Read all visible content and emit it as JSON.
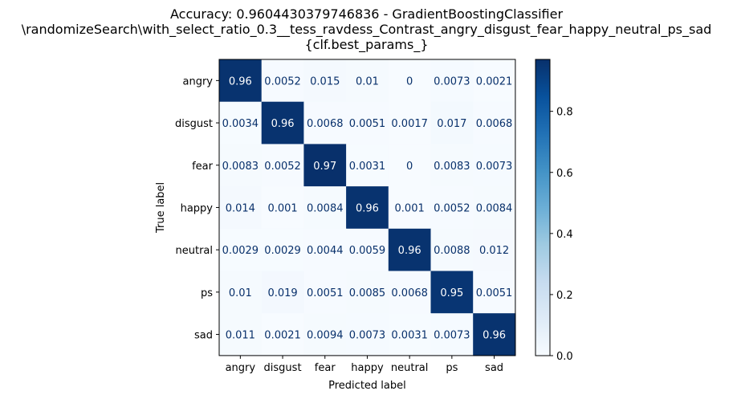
{
  "chart_data": {
    "type": "heatmap",
    "title_lines": [
      "Accuracy: 0.9604430379746836 - GradientBoostingClassifier",
      "\\randomizeSearch\\with_select_ratio_0.3__tess_ravdess_Contrast_angry_disgust_fear_happy_neutral_ps_sad",
      "{clf.best_params_}"
    ],
    "xlabel": "Predicted label",
    "ylabel": "True label",
    "x_categories": [
      "angry",
      "disgust",
      "fear",
      "happy",
      "neutral",
      "ps",
      "sad"
    ],
    "y_categories": [
      "angry",
      "disgust",
      "fear",
      "happy",
      "neutral",
      "ps",
      "sad"
    ],
    "cell_labels": [
      [
        "0.96",
        "0.0052",
        "0.015",
        "0.01",
        "0",
        "0.0073",
        "0.0021"
      ],
      [
        "0.0034",
        "0.96",
        "0.0068",
        "0.0051",
        "0.0017",
        "0.017",
        "0.0068"
      ],
      [
        "0.0083",
        "0.0052",
        "0.97",
        "0.0031",
        "0",
        "0.0083",
        "0.0073"
      ],
      [
        "0.014",
        "0.001",
        "0.0084",
        "0.96",
        "0.001",
        "0.0052",
        "0.0084"
      ],
      [
        "0.0029",
        "0.0029",
        "0.0044",
        "0.0059",
        "0.96",
        "0.0088",
        "0.012"
      ],
      [
        "0.01",
        "0.019",
        "0.0051",
        "0.0085",
        "0.0068",
        "0.95",
        "0.0051"
      ],
      [
        "0.011",
        "0.0021",
        "0.0094",
        "0.0073",
        "0.0031",
        "0.0073",
        "0.96"
      ]
    ],
    "colormap": "Blues",
    "vmin": 0,
    "vmax": 0.97,
    "colorbar_ticks": [
      "0.0",
      "0.2",
      "0.4",
      "0.6",
      "0.8"
    ],
    "colorbar_tick_values": [
      0,
      0.2,
      0.4,
      0.6,
      0.8
    ],
    "grid": false
  }
}
